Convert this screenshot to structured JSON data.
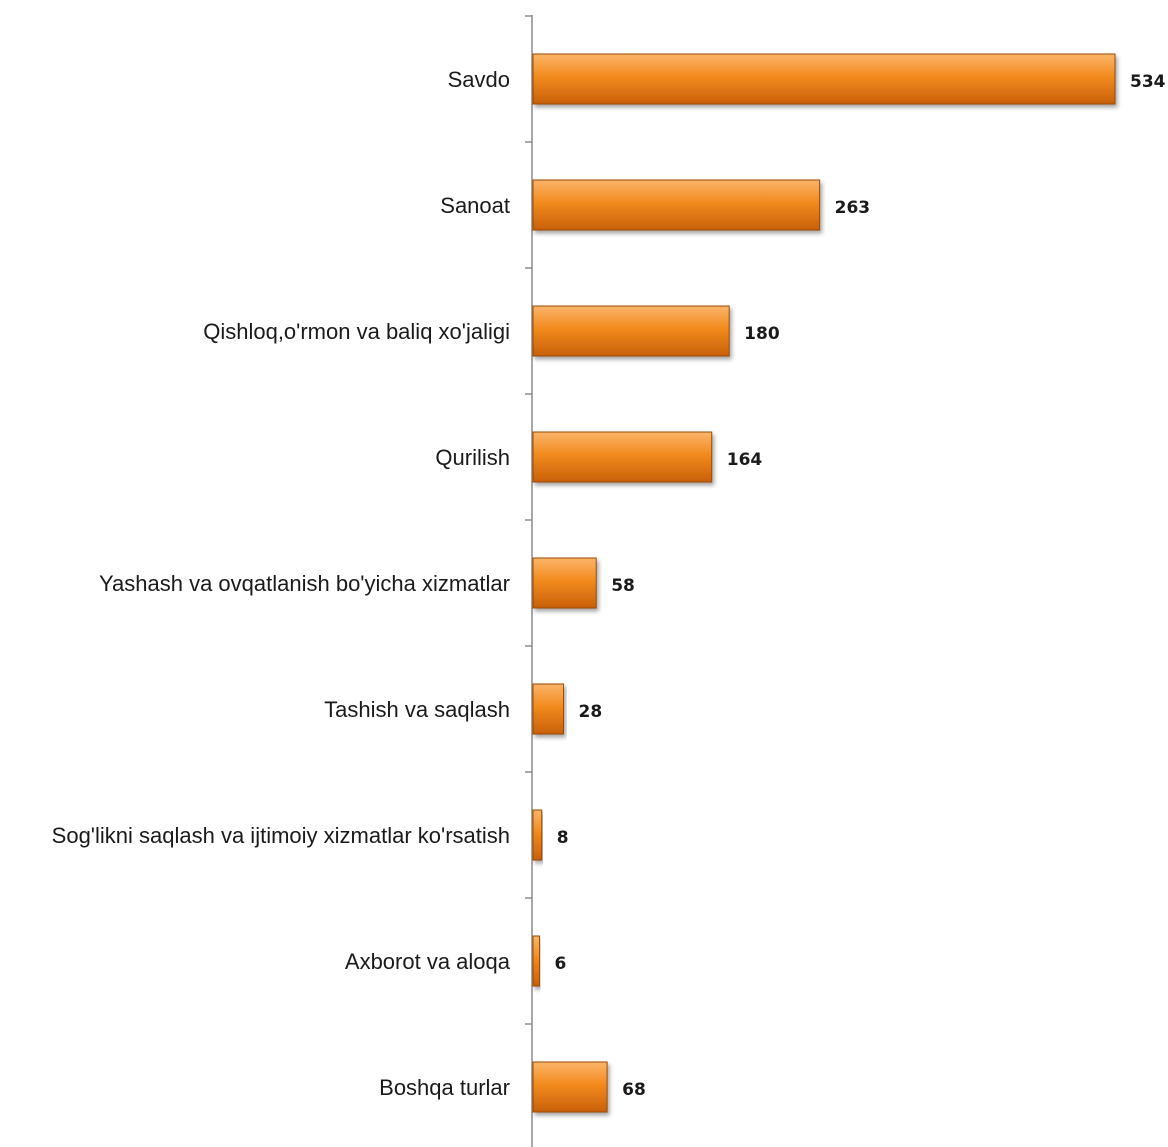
{
  "chart_data": {
    "type": "bar",
    "orientation": "horizontal",
    "categories": [
      "Savdo",
      "Sanoat",
      "Qishloq,o'rmon va baliq xo'jaligi",
      "Qurilish",
      "Yashash va ovqatlanish bo'yicha xizmatlar",
      "Tashish va saqlash",
      "Sog'likni saqlash va ijtimoiy xizmatlar ko'rsatish",
      "Axborot va aloqa",
      "Boshqa turlar"
    ],
    "values": [
      534,
      263,
      180,
      164,
      58,
      28,
      8,
      6,
      68
    ],
    "value_labels": [
      "534",
      "263",
      "180",
      "164",
      "58",
      "28",
      "8",
      "6",
      "68"
    ],
    "xlim": [
      0,
      550
    ],
    "grid": false,
    "legend": "none",
    "colors": {
      "bar_light": "#fbb56a",
      "bar_main": "#f28a1e",
      "bar_dark": "#c8600a",
      "bar_edge": "#9a4a06",
      "axis": "#8c8c8c"
    }
  }
}
